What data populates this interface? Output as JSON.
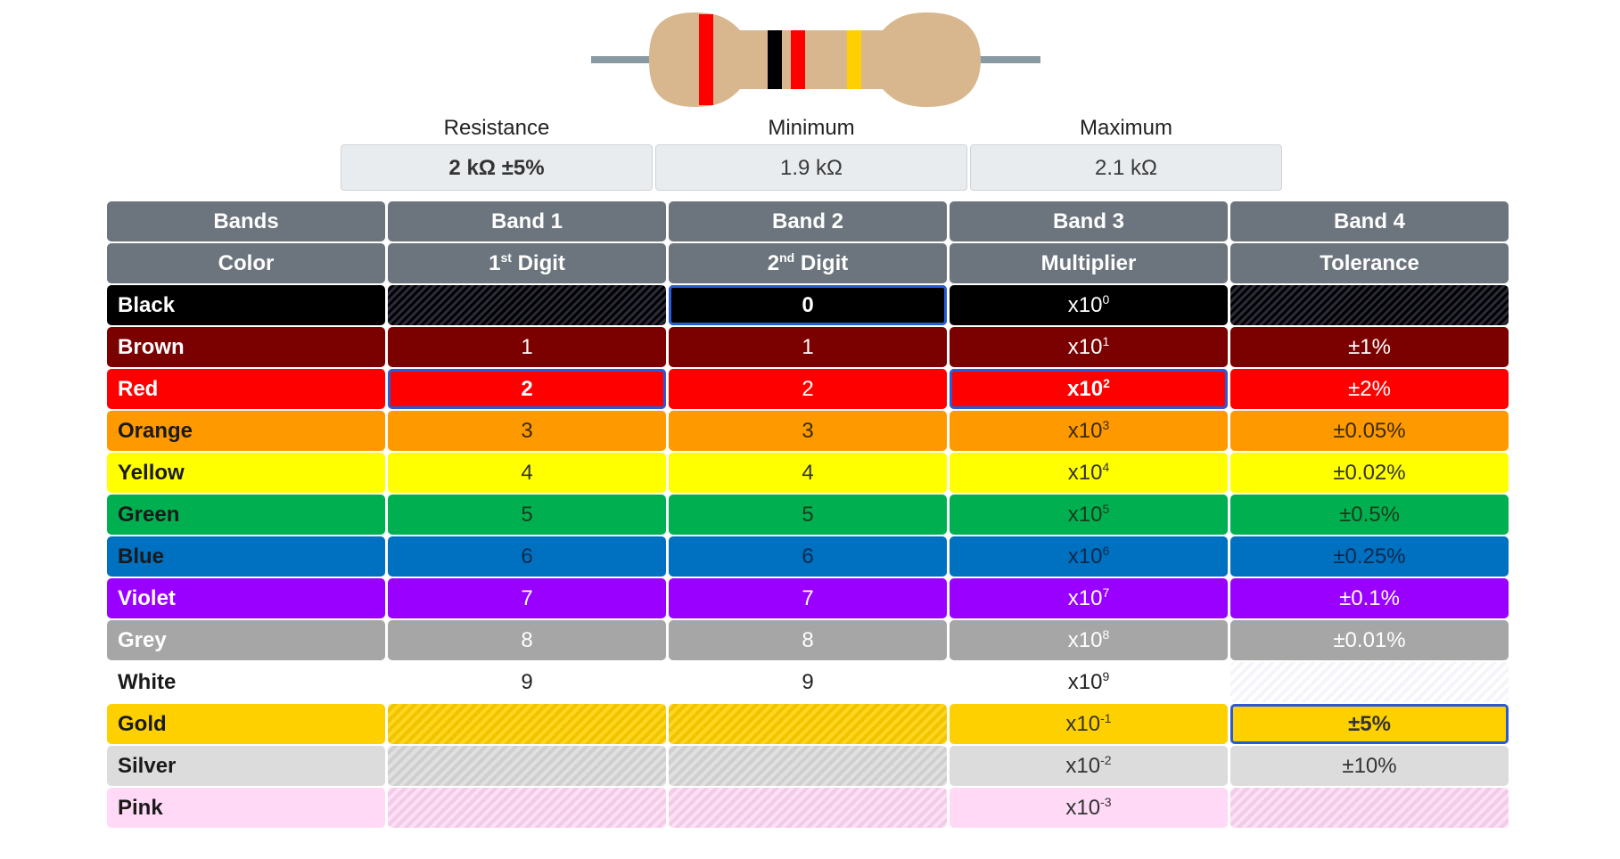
{
  "resistor": {
    "colors": {
      "body": "#d8b78e",
      "lead": "#8a9aa3",
      "band1": "#ff0000",
      "band2": "#000000",
      "band3": "#ff0000",
      "band4": "#ffd000"
    }
  },
  "summary": {
    "resistance_label": "Resistance",
    "resistance_value": "2 kΩ ±5%",
    "minimum_label": "Minimum",
    "minimum_value": "1.9 kΩ",
    "maximum_label": "Maximum",
    "maximum_value": "2.1 kΩ"
  },
  "table": {
    "header1": [
      "Bands",
      "Band 1",
      "Band 2",
      "Band 3",
      "Band 4"
    ],
    "header2": {
      "color": "Color",
      "digit1": "1",
      "digit1_sup": "st",
      "digit1_suffix": " Digit",
      "digit2": "2",
      "digit2_sup": "nd",
      "digit2_suffix": " Digit",
      "multiplier": "Multiplier",
      "tolerance": "Tolerance"
    },
    "rows": [
      {
        "name": "Black",
        "b1": "",
        "b2": "0",
        "mult_base": "x10",
        "mult_exp": "0",
        "tol": ""
      },
      {
        "name": "Brown",
        "b1": "1",
        "b2": "1",
        "mult_base": "x10",
        "mult_exp": "1",
        "tol": "±1%"
      },
      {
        "name": "Red",
        "b1": "2",
        "b2": "2",
        "mult_base": "x10",
        "mult_exp": "2",
        "tol": "±2%"
      },
      {
        "name": "Orange",
        "b1": "3",
        "b2": "3",
        "mult_base": "x10",
        "mult_exp": "3",
        "tol": "±0.05%"
      },
      {
        "name": "Yellow",
        "b1": "4",
        "b2": "4",
        "mult_base": "x10",
        "mult_exp": "4",
        "tol": "±0.02%"
      },
      {
        "name": "Green",
        "b1": "5",
        "b2": "5",
        "mult_base": "x10",
        "mult_exp": "5",
        "tol": "±0.5%"
      },
      {
        "name": "Blue",
        "b1": "6",
        "b2": "6",
        "mult_base": "x10",
        "mult_exp": "6",
        "tol": "±0.25%"
      },
      {
        "name": "Violet",
        "b1": "7",
        "b2": "7",
        "mult_base": "x10",
        "mult_exp": "7",
        "tol": "±0.1%"
      },
      {
        "name": "Grey",
        "b1": "8",
        "b2": "8",
        "mult_base": "x10",
        "mult_exp": "8",
        "tol": "±0.01%"
      },
      {
        "name": "White",
        "b1": "9",
        "b2": "9",
        "mult_base": "x10",
        "mult_exp": "9",
        "tol": ""
      },
      {
        "name": "Gold",
        "b1": "",
        "b2": "",
        "mult_base": "x10",
        "mult_exp": "-1",
        "tol": "±5%"
      },
      {
        "name": "Silver",
        "b1": "",
        "b2": "",
        "mult_base": "x10",
        "mult_exp": "-2",
        "tol": "±10%"
      },
      {
        "name": "Pink",
        "b1": "",
        "b2": "",
        "mult_base": "x10",
        "mult_exp": "-3",
        "tol": ""
      }
    ]
  }
}
